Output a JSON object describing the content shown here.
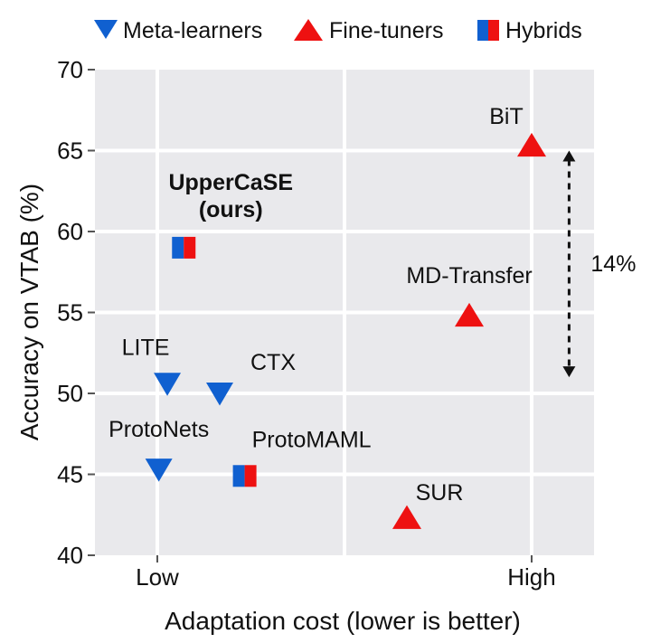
{
  "chart_data": {
    "type": "scatter",
    "title": "",
    "xlabel": "Adaptation cost (lower is better)",
    "ylabel": "Accuracy on VTAB (%)",
    "xlim": [
      0,
      1
    ],
    "ylim": [
      40,
      70
    ],
    "yticks": [
      40,
      45,
      50,
      55,
      60,
      65,
      70
    ],
    "xticks": [
      {
        "value": 0.125,
        "label": "Low"
      },
      {
        "value": 0.875,
        "label": "High"
      }
    ],
    "grid": true,
    "legend_position": "top",
    "legend": [
      {
        "name": "Meta-learners",
        "marker": "triangle-down",
        "color": "#1060d0"
      },
      {
        "name": "Fine-tuners",
        "marker": "triangle-up",
        "color": "#ee1111"
      },
      {
        "name": "Hybrids",
        "marker": "square-split",
        "color": "#1060d0",
        "color2": "#ee1111"
      }
    ],
    "series": [
      {
        "name": "Meta-learners",
        "points": [
          {
            "label": "LITE",
            "x": 0.145,
            "y": 50.6
          },
          {
            "label": "CTX",
            "x": 0.25,
            "y": 50.0
          },
          {
            "label": "ProtoNets",
            "x": 0.128,
            "y": 45.3
          }
        ]
      },
      {
        "name": "Fine-tuners",
        "points": [
          {
            "label": "BiT",
            "x": 0.875,
            "y": 65.3
          },
          {
            "label": "MD-Transfer",
            "x": 0.75,
            "y": 54.8
          },
          {
            "label": "SUR",
            "x": 0.625,
            "y": 42.3
          }
        ]
      },
      {
        "name": "Hybrids",
        "points": [
          {
            "label": "UpperCaSE\n(ours)",
            "x": 0.178,
            "y": 59.0,
            "bold": true
          },
          {
            "label": "ProtoMAML",
            "x": 0.3,
            "y": 44.9
          }
        ]
      }
    ],
    "annotations": [
      {
        "text": "14%",
        "y_from": 51.0,
        "y_to": 65.0,
        "x": 0.95,
        "style": "dashed-double-arrow"
      }
    ],
    "colors": {
      "panel": "#e9e9ec",
      "grid": "#ffffff",
      "meta": "#1060d0",
      "fine": "#ee1111"
    }
  }
}
